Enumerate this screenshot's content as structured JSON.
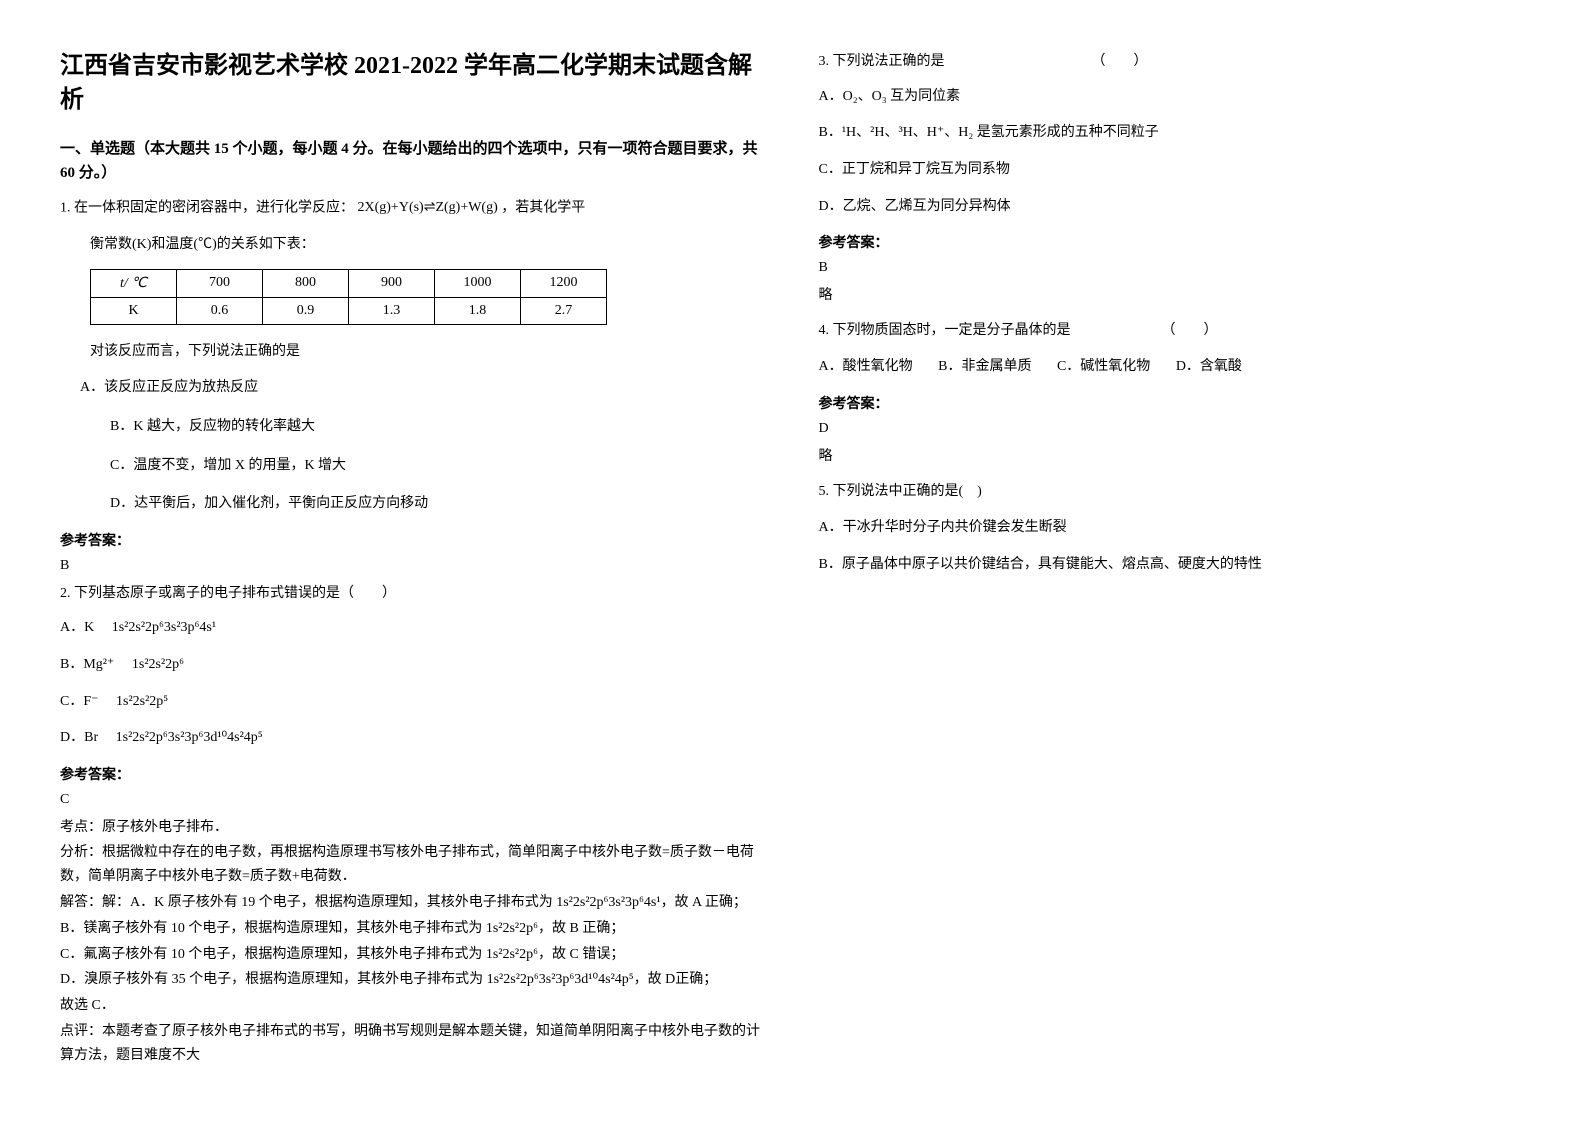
{
  "title": "江西省吉安市影视艺术学校 2021-2022 学年高二化学期末试题含解析",
  "section1_header": "一、单选题（本大题共 15 个小题，每小题 4 分。在每小题给出的四个选项中，只有一项符合题目要求，共 60 分。）",
  "q1": {
    "stem_a": "1. 在一体积固定的密闭容器中，进行化学反应：",
    "formula": "2X(g)+Y(s)⇌Z(g)+W(g)",
    "stem_b": "，若其化学平",
    "stem_c": "衡常数(K)和温度(℃)的关系如下表：",
    "table": {
      "header": [
        "t/ ℃",
        "700",
        "800",
        "900",
        "1000",
        "1200"
      ],
      "row": [
        "K",
        "0.6",
        "0.9",
        "1.3",
        "1.8",
        "2.7"
      ]
    },
    "after_table": "对该反应而言，下列说法正确的是",
    "optA": "A．该反应正反应为放热反应",
    "optB": "B．K 越大，反应物的转化率越大",
    "optC": "C．温度不变，增加 X 的用量，K 增大",
    "optD": "D．达平衡后，加入催化剂，平衡向正反应方向移动"
  },
  "answer_label": "参考答案：",
  "q1_answer": "B",
  "q2": {
    "stem": "2. 下列基态原子或离子的电子排布式错误的是（　　）",
    "optA_label": "A．K　",
    "optA_val": "1s²2s²2p⁶3s²3p⁶4s¹",
    "optB_label": "B．Mg²⁺　",
    "optB_val": "1s²2s²2p⁶",
    "optC_label": "C．F⁻　",
    "optC_val": "1s²2s²2p⁵",
    "optD_label": "D．Br　",
    "optD_val": "1s²2s²2p⁶3s²3p⁶3d¹⁰4s²4p⁵"
  },
  "q2_answer": "C",
  "q2_kaodian": "考点：原子核外电子排布．",
  "q2_fenxi": "分析：根据微粒中存在的电子数，再根据构造原理书写核外电子排布式，简单阳离子中核外电子数=质子数－电荷数，简单阴离子中核外电子数=质子数+电荷数．",
  "q2_jieda_pre": "解答：解：A．K 原子核外有 19 个电子，根据构造原理知，其核外电子排布式为 1s²2s²2p⁶3s²3p⁶4s¹，故 A 正确；",
  "q2_jieda_b": "B．镁离子核外有 10 个电子，根据构造原理知，其核外电子排布式为 1s²2s²2p⁶，故 B 正确；",
  "q2_jieda_c": "C．氟离子核外有 10 个电子，根据构造原理知，其核外电子排布式为 1s²2s²2p⁶，故 C 错误；",
  "q2_jieda_d": "D．溴原子核外有 35 个电子，根据构造原理知，其核外电子排布式为 1s²2s²2p⁶3s²3p⁶3d¹⁰4s²4p⁵，故 D正确；",
  "q2_jieda_end": "故选 C．",
  "q2_dianping": "点评：本题考查了原子核外电子排布式的书写，明确书写规则是解本题关键，知道简单阴阳离子中核外电子数的计算方法，题目难度不大",
  "q3": {
    "stem": "3. 下列说法正确的是　　　　　　　　　　　（　　）",
    "optA": "A．O₂、O₃ 互为同位素",
    "optB": "B．¹H、²H、³H、H⁺、H₂ 是氢元素形成的五种不同粒子",
    "optC": "C．正丁烷和异丁烷互为同系物",
    "optD": "D．乙烷、乙烯互为同分异构体"
  },
  "q3_answer": "B",
  "q3_extra": "略",
  "q4": {
    "stem": "4. 下列物质固态时，一定是分子晶体的是　　　　　　　（　　）",
    "optA": "A．酸性氧化物",
    "optB": "B．非金属单质",
    "optC": "C．碱性氧化物",
    "optD": "D．含氧酸"
  },
  "q4_answer": "D",
  "q4_extra": "略",
  "q5": {
    "stem": "5. 下列说法中正确的是(　)",
    "optA": "A．干冰升华时分子内共价键会发生断裂",
    "optB": "B．原子晶体中原子以共价键结合，具有键能大、熔点高、硬度大的特性"
  }
}
